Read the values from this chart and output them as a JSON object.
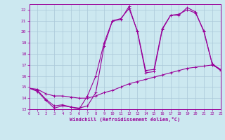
{
  "xlabel": "Windchill (Refroidissement éolien,°C)",
  "x_values": [
    0,
    1,
    2,
    3,
    4,
    5,
    6,
    7,
    8,
    9,
    10,
    11,
    12,
    13,
    14,
    15,
    16,
    17,
    18,
    19,
    20,
    21,
    22,
    23
  ],
  "line_zigzag": [
    14.9,
    14.6,
    13.8,
    13.1,
    13.3,
    13.2,
    13.0,
    14.2,
    16.0,
    19.0,
    21.0,
    21.1,
    22.3,
    20.0,
    16.3,
    16.4,
    20.2,
    21.5,
    21.5,
    22.2,
    21.8,
    20.0,
    17.1,
    16.5
  ],
  "line_upper": [
    14.9,
    14.7,
    13.9,
    13.3,
    13.4,
    13.2,
    13.1,
    13.3,
    14.5,
    18.7,
    21.0,
    21.2,
    22.1,
    20.1,
    16.5,
    16.6,
    20.3,
    21.5,
    21.6,
    22.0,
    21.7,
    20.1,
    17.1,
    16.6
  ],
  "line_base": [
    14.9,
    14.8,
    14.4,
    14.2,
    14.2,
    14.1,
    14.0,
    14.0,
    14.2,
    14.5,
    14.7,
    15.0,
    15.3,
    15.5,
    15.7,
    15.9,
    16.1,
    16.3,
    16.5,
    16.7,
    16.8,
    16.9,
    17.0,
    16.6
  ],
  "color": "#990099",
  "bg_color": "#cce8f0",
  "grid_color": "#aac8d8",
  "ylim_min": 13,
  "ylim_max": 22.5,
  "xlim_min": 0,
  "xlim_max": 23,
  "yticks": [
    13,
    14,
    15,
    16,
    17,
    18,
    19,
    20,
    21,
    22
  ],
  "xticks": [
    0,
    1,
    2,
    3,
    4,
    5,
    6,
    7,
    8,
    9,
    10,
    11,
    12,
    13,
    14,
    15,
    16,
    17,
    18,
    19,
    20,
    21,
    22,
    23
  ]
}
